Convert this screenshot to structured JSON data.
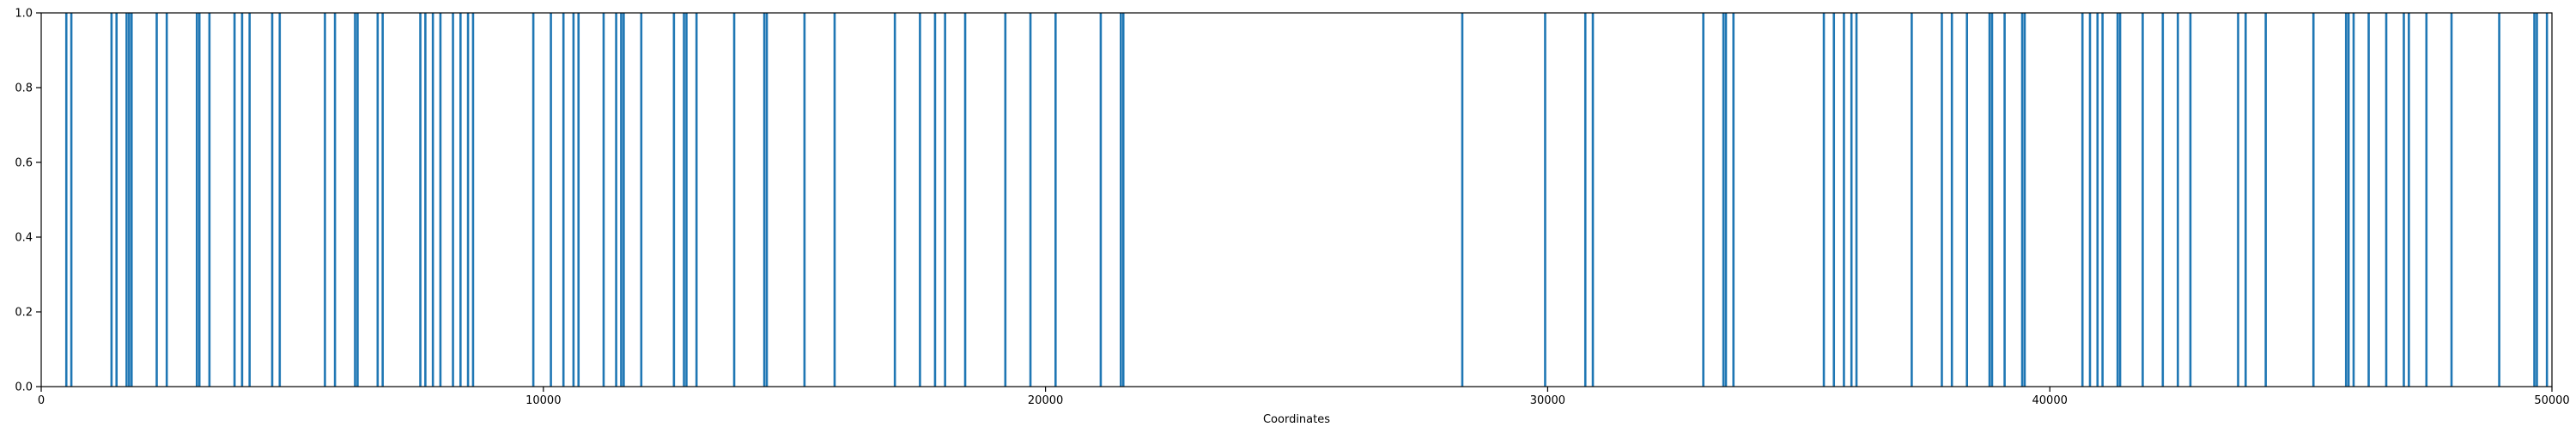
{
  "chart_data": {
    "type": "bar",
    "title": "",
    "xlabel": "Coordinates",
    "ylabel": "",
    "xlim": [
      0,
      50000
    ],
    "ylim": [
      0,
      1.0
    ],
    "grid": false,
    "x_ticks": [
      0,
      10000,
      20000,
      30000,
      40000,
      50000
    ],
    "x_tick_labels": [
      "0",
      "10000",
      "20000",
      "30000",
      "40000",
      "50000"
    ],
    "y_ticks": [
      0.0,
      0.2,
      0.4,
      0.6,
      0.8,
      1.0
    ],
    "y_tick_labels": [
      "0.0",
      "0.2",
      "0.4",
      "0.6",
      "0.8",
      "1.0"
    ],
    "bar_color": "#1f77b4",
    "series": [
      {
        "x": [
          500,
          600,
          1400,
          1500,
          1700,
          1750,
          1800,
          2300,
          2500,
          3100,
          3150,
          3350,
          3850,
          4000,
          4150,
          4600,
          4750,
          5650,
          5850,
          6250,
          6300,
          6700,
          6800,
          7550,
          7650,
          7800,
          7950,
          8200,
          8350,
          8500,
          8600,
          9800,
          10150,
          10400,
          10600,
          10700,
          11200,
          11450,
          11550,
          11600,
          11950,
          12600,
          12800,
          12850,
          13050,
          13800,
          14400,
          14450,
          15200,
          15800,
          17000,
          17500,
          17800,
          18000,
          18400,
          19200,
          19700,
          20200,
          21100,
          21500,
          21550,
          28300,
          29950,
          30750,
          30900,
          33100,
          33500,
          33550,
          33700,
          35500,
          35700,
          35900,
          36050,
          36150,
          37250,
          37850,
          38050,
          38350,
          38800,
          38850,
          39100,
          39450,
          39500,
          40650,
          40800,
          40950,
          41050,
          41350,
          41400,
          41850,
          42250,
          42550,
          42800,
          43750,
          43900,
          44300,
          45250,
          45900,
          45950,
          46050,
          46350,
          46700,
          47050,
          47150,
          47500,
          48000,
          48950,
          49650,
          49700,
          49900
        ],
        "values": [
          1,
          1,
          1,
          1,
          1,
          1,
          1,
          1,
          1,
          1,
          1,
          1,
          1,
          1,
          1,
          1,
          1,
          1,
          1,
          1,
          1,
          1,
          1,
          1,
          1,
          1,
          1,
          1,
          1,
          1,
          1,
          1,
          1,
          1,
          1,
          1,
          1,
          1,
          1,
          1,
          1,
          1,
          1,
          1,
          1,
          1,
          1,
          1,
          1,
          1,
          1,
          1,
          1,
          1,
          1,
          1,
          1,
          1,
          1,
          1,
          1,
          1,
          1,
          1,
          1,
          1,
          1,
          1,
          1,
          1,
          1,
          1,
          1,
          1,
          1,
          1,
          1,
          1,
          1,
          1,
          1,
          1,
          1,
          1,
          1,
          1,
          1,
          1,
          1,
          1,
          1,
          1,
          1,
          1,
          1,
          1,
          1,
          1,
          1,
          1,
          1,
          1,
          1,
          1,
          1,
          1,
          1,
          1,
          1,
          1
        ]
      }
    ]
  }
}
